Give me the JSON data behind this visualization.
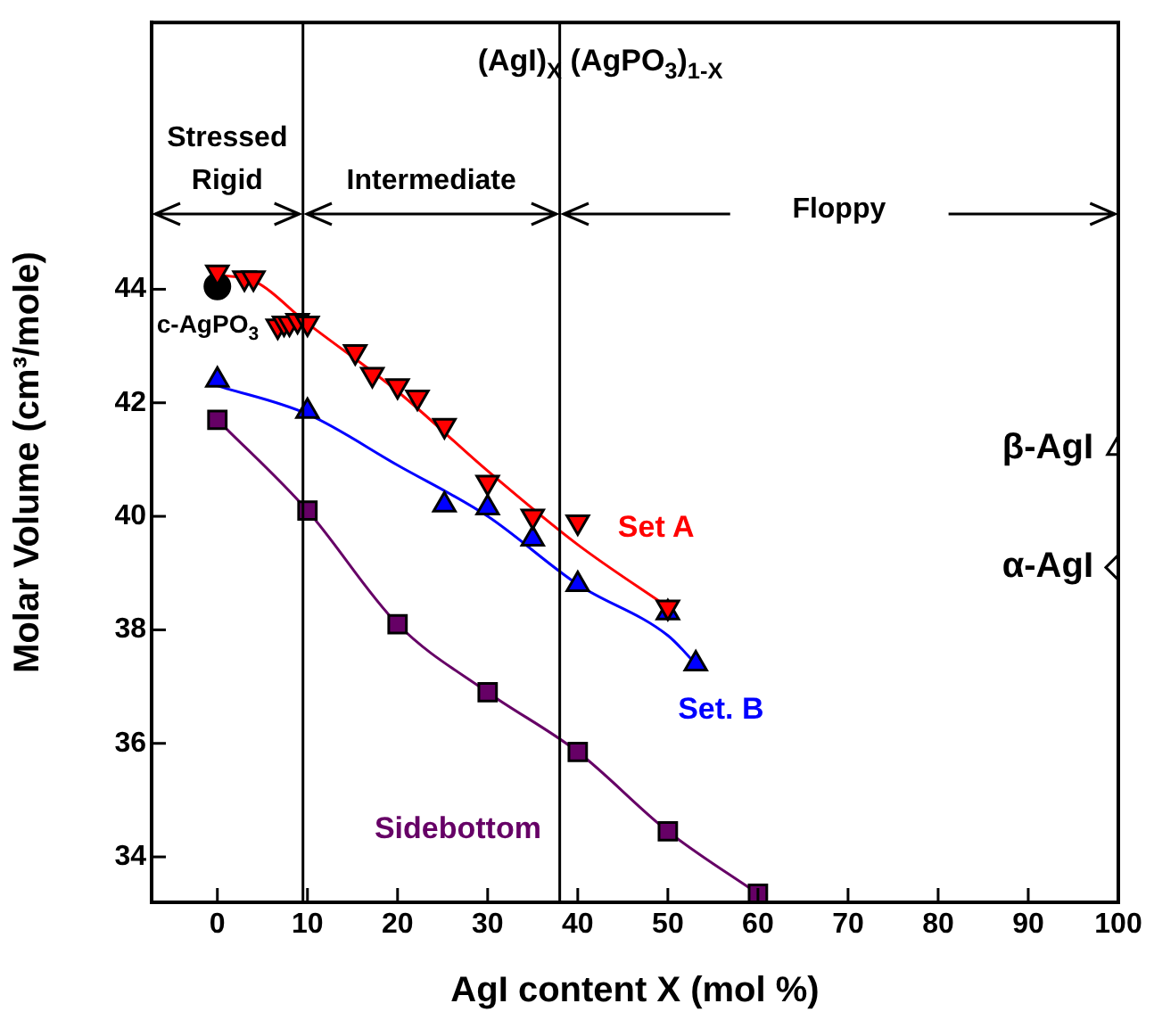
{
  "chart_data": {
    "type": "scatter",
    "title": "(AgI)$_{X}$ (AgPO$_{3}$)$_{1-X}$",
    "xlabel": "AgI content X (mol %)",
    "ylabel": "Molar Volume (cm³/mole)",
    "xlim": [
      -7.3,
      100
    ],
    "ylim": [
      33.2,
      48.7
    ],
    "xticks": [
      0,
      10,
      20,
      30,
      40,
      50,
      60,
      70,
      80,
      90,
      100
    ],
    "yticks": [
      34,
      36,
      38,
      40,
      42,
      44
    ],
    "grid": false,
    "legend": false,
    "series": [
      {
        "name": "Set A",
        "type": "scatter",
        "marker": "triangle-down",
        "color": "#ff0000",
        "x": [
          0,
          3,
          4,
          6.7,
          7.4,
          8,
          8.9,
          10,
          15.3,
          17.2,
          20,
          22.2,
          25.2,
          30,
          35,
          40,
          50
        ],
        "values": [
          44.3,
          44.2,
          44.2,
          43.35,
          43.4,
          43.4,
          43.45,
          43.4,
          42.9,
          42.5,
          42.3,
          42.1,
          41.6,
          40.6,
          40.0,
          39.9,
          38.4
        ]
      },
      {
        "type": "line",
        "marker": "none",
        "color": "#ff0000",
        "x": [
          0,
          4,
          10,
          20,
          30,
          40,
          50
        ],
        "values": [
          44.25,
          44.15,
          43.4,
          42.2,
          40.8,
          39.5,
          38.4
        ]
      },
      {
        "name": "Set. B",
        "type": "scatter",
        "marker": "triangle",
        "color": "#0000ff",
        "x": [
          0,
          10,
          25.2,
          30,
          35,
          40,
          50,
          53.1
        ],
        "values": [
          42.4,
          41.85,
          40.2,
          40.15,
          39.6,
          38.8,
          38.3,
          37.4
        ]
      },
      {
        "type": "line",
        "marker": "none",
        "color": "#0000ff",
        "x": [
          0,
          10,
          20,
          30,
          40,
          50,
          53.1
        ],
        "values": [
          42.3,
          41.8,
          40.9,
          40.0,
          38.8,
          37.9,
          37.4
        ]
      },
      {
        "name": "Sidebottom",
        "type": "line",
        "marker": "square",
        "color": "#660066",
        "x": [
          0,
          10,
          20,
          30,
          40,
          50,
          60
        ],
        "values": [
          41.7,
          40.1,
          38.1,
          36.9,
          35.85,
          34.45,
          33.35
        ]
      },
      {
        "name": "c-AgPO$_{3}$",
        "type": "scatter",
        "marker": "circle",
        "color": "#000000",
        "x": [
          0
        ],
        "values": [
          44.05
        ]
      },
      {
        "name": "β-AgI",
        "type": "scatter",
        "marker": "triangle",
        "color": "#ffffff",
        "x": [
          100
        ],
        "values": [
          41.2
        ]
      },
      {
        "name": "α-AgI",
        "type": "scatter",
        "marker": "diamond",
        "color": "#ffffff",
        "x": [
          100
        ],
        "values": [
          39.1
        ]
      }
    ],
    "ref_lines": [
      {
        "axis": "x",
        "value": 9.5
      },
      {
        "axis": "x",
        "value": 38
      }
    ],
    "annotations": [
      "Stressed Rigid",
      "Intermediate",
      "Floppy"
    ]
  }
}
